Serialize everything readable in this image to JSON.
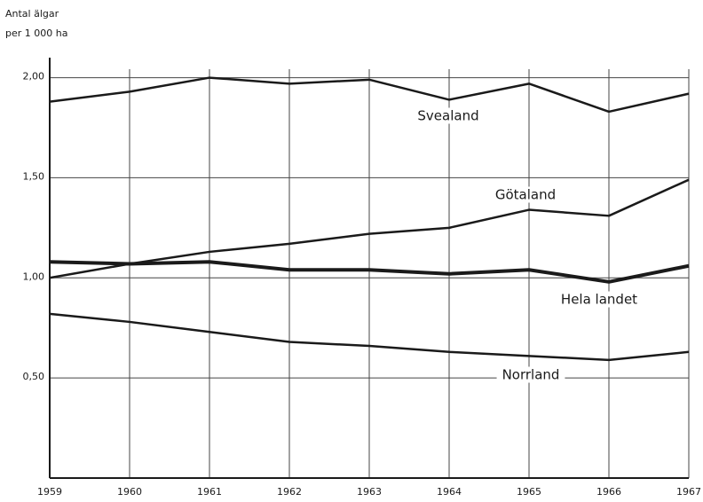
{
  "chart_data": {
    "type": "line",
    "y_label": [
      "Antal älgar",
      "per 1 000 ha"
    ],
    "x": [
      1959,
      1960,
      1961,
      1962,
      1963,
      1964,
      1965,
      1966,
      1967
    ],
    "xlim": [
      1959,
      1967
    ],
    "xticks": [
      1959,
      1960,
      1961,
      1962,
      1963,
      1964,
      1965,
      1966,
      1967
    ],
    "ylim": [
      0,
      2.1
    ],
    "yticks": [
      {
        "value": 0.5,
        "label": "0,50"
      },
      {
        "value": 1,
        "label": "1,00"
      },
      {
        "value": 1.5,
        "label": "1,50"
      },
      {
        "value": 2,
        "label": "2,00"
      }
    ],
    "grid": true,
    "series": [
      {
        "name": "Svealand",
        "color": "#1a1a1a",
        "width": 2.5,
        "values": [
          1.88,
          1.93,
          2.0,
          1.97,
          1.99,
          1.89,
          1.97,
          1.83,
          1.92
        ]
      },
      {
        "name": "Götaland",
        "color": "#1a1a1a",
        "width": 2.5,
        "values": [
          1.0,
          1.07,
          1.13,
          1.17,
          1.22,
          1.25,
          1.34,
          1.31,
          1.49
        ]
      },
      {
        "name": "Hela landet",
        "color": "#1a1a1a",
        "width": 4,
        "values": [
          1.08,
          1.07,
          1.08,
          1.04,
          1.04,
          1.02,
          1.04,
          0.98,
          1.06
        ]
      },
      {
        "name": "Norrland",
        "color": "#1a1a1a",
        "width": 2.5,
        "values": [
          0.82,
          0.78,
          0.73,
          0.68,
          0.66,
          0.63,
          0.61,
          0.59,
          0.63
        ]
      }
    ]
  }
}
